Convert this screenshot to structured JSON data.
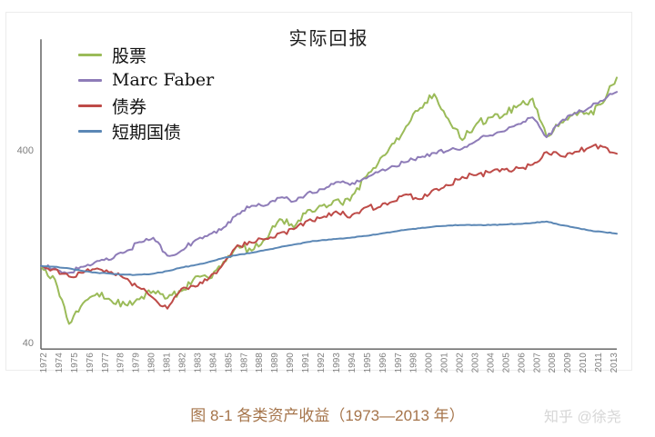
{
  "page": {
    "background": "#ffffff",
    "caption": "图 8-1 各类资产收益（1973—2013 年）",
    "caption_color": "#a5744a",
    "watermark": "知乎 @徐尧",
    "watermark_color": "#d6d6d6"
  },
  "chart_data": {
    "type": "line",
    "title": "实际回报",
    "y_scale": "log",
    "yticks": [
      40,
      400
    ],
    "ylim": [
      37,
      1500
    ],
    "x_start_year": 1973,
    "x_end_year": 2014,
    "start_value": 100,
    "grid": false,
    "legend_position": "top-left",
    "axis_color": "#595959",
    "tick_label_color": "#7f7f7f",
    "xticklabels": [
      "1972",
      "1974",
      "1975",
      "1976",
      "1977",
      "1978",
      "1979",
      "1980",
      "1981",
      "1982",
      "1983",
      "1984",
      "1985",
      "1987",
      "1988",
      "1989",
      "1990",
      "1991",
      "1992",
      "1993",
      "1994",
      "1995",
      "1996",
      "1997",
      "1998",
      "2000",
      "2001",
      "2002",
      "2003",
      "2004",
      "2005",
      "2006",
      "2007",
      "2008",
      "2009",
      "2010",
      "2011",
      "2013"
    ],
    "years": [
      1973,
      1974,
      1975,
      1976,
      1977,
      1978,
      1979,
      1980,
      1981,
      1982,
      1983,
      1984,
      1985,
      1986,
      1987,
      1988,
      1989,
      1990,
      1991,
      1992,
      1993,
      1994,
      1995,
      1996,
      1997,
      1998,
      1999,
      2000,
      2001,
      2002,
      2003,
      2004,
      2005,
      2006,
      2007,
      2008,
      2009,
      2010,
      2011,
      2012,
      2013
    ],
    "series": [
      {
        "name": "股票",
        "color": "#9bbb59",
        "noise": 0.025,
        "values": [
          85,
          50,
          64,
          72,
          66,
          63,
          67,
          74,
          68,
          74,
          88,
          86,
          105,
          128,
          120,
          138,
          175,
          158,
          195,
          205,
          220,
          218,
          285,
          340,
          430,
          530,
          660,
          780,
          580,
          450,
          545,
          590,
          612,
          680,
          740,
          470,
          555,
          625,
          612,
          700,
          950
        ]
      },
      {
        "name": "Marc Faber",
        "color": "#8e7cb8",
        "noise": 0.013,
        "values": [
          97,
          92,
          99,
          106,
          108,
          118,
          133,
          140,
          113,
          120,
          136,
          146,
          158,
          186,
          205,
          206,
          226,
          216,
          240,
          250,
          272,
          263,
          285,
          306,
          330,
          346,
          366,
          386,
          396,
          406,
          446,
          476,
          500,
          545,
          590,
          465,
          560,
          620,
          660,
          720,
          800
        ]
      },
      {
        "name": "债券",
        "color": "#be4b48",
        "noise": 0.016,
        "values": [
          96,
          88,
          92,
          97,
          93,
          86,
          77,
          68,
          60,
          76,
          78,
          87,
          103,
          128,
          132,
          138,
          148,
          155,
          172,
          178,
          192,
          178,
          200,
          201,
          215,
          235,
          222,
          250,
          262,
          290,
          296,
          306,
          316,
          322,
          335,
          390,
          372,
          390,
          410,
          415,
          382
        ]
      },
      {
        "name": "短期国债",
        "color": "#5b87b5",
        "noise": 0.002,
        "values": [
          99,
          97,
          94,
          92,
          91,
          90,
          90,
          91,
          94,
          98,
          101,
          105,
          110,
          114,
          117,
          121,
          125,
          129,
          133,
          136,
          138,
          140,
          143,
          146,
          150,
          154,
          157,
          160,
          162,
          163,
          163,
          163,
          164,
          165,
          167,
          170,
          163,
          158,
          153,
          150,
          147
        ]
      }
    ]
  }
}
